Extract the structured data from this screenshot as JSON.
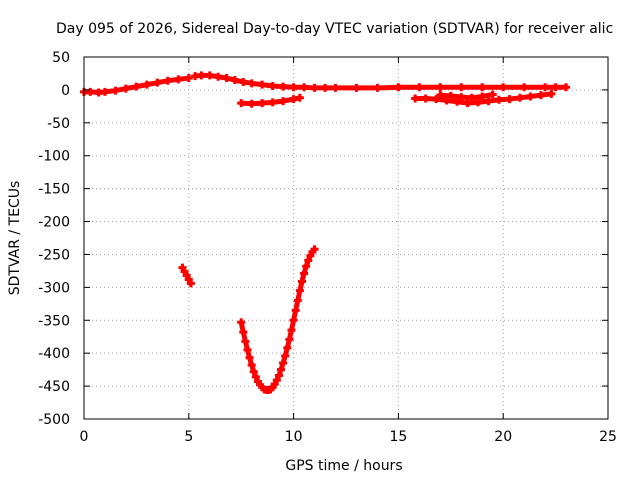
{
  "chart_data": {
    "type": "scatter",
    "title": "Day 095 of 2026, Sidereal Day-to-day VTEC variation (SDTVAR) for receiver alic",
    "xlabel": "GPS time / hours",
    "ylabel": "SDTVAR / TECUs",
    "xlim": [
      0,
      25
    ],
    "ylim": [
      -500,
      50
    ],
    "xticks": [
      0,
      5,
      10,
      15,
      20,
      25
    ],
    "yticks": [
      50,
      0,
      -50,
      -100,
      -150,
      -200,
      -250,
      -300,
      -350,
      -400,
      -450,
      -500
    ],
    "grid": true,
    "legend": "none",
    "marker": "+",
    "color": "#ff0000",
    "series": [
      {
        "x": [
          0.0,
          0.3,
          0.7,
          1.0,
          1.5,
          2.0,
          2.5,
          3.0,
          3.5,
          4.0,
          4.5,
          5.0
        ],
        "y": [
          -3,
          -3,
          -4,
          -3,
          -1,
          2,
          5,
          8,
          11,
          14,
          16,
          18
        ]
      },
      {
        "x": [
          5.3,
          5.6,
          6.0,
          6.4,
          6.8,
          7.2,
          7.6,
          8.0,
          8.5,
          9.0,
          9.5,
          10.0,
          10.5,
          11.0,
          11.5,
          12.0,
          13.0,
          14.0,
          15.0,
          16.0,
          17.0,
          18.0,
          19.0,
          20.0,
          21.0,
          22.0,
          22.5,
          23.0
        ],
        "y": [
          21,
          22,
          22,
          20,
          18,
          15,
          12,
          10,
          8,
          6,
          5,
          4,
          4,
          3,
          3,
          3,
          3,
          3,
          4,
          4,
          4,
          4,
          4,
          4,
          4,
          4,
          4,
          4
        ]
      },
      {
        "x": [
          7.5,
          8.0,
          8.5,
          9.0,
          9.5,
          10.0,
          10.3
        ],
        "y": [
          -20,
          -21,
          -20,
          -19,
          -17,
          -14,
          -12
        ]
      },
      {
        "x": [
          15.8,
          16.3,
          16.8,
          17.3,
          17.8,
          18.3,
          18.8,
          19.3,
          19.8,
          20.3,
          20.8,
          21.3,
          21.8,
          22.3
        ],
        "y": [
          -13,
          -13,
          -14,
          -16,
          -18,
          -20,
          -19,
          -17,
          -15,
          -14,
          -12,
          -10,
          -8,
          -6
        ]
      },
      {
        "x": [
          17.0,
          17.5,
          18.0,
          18.5,
          19.0,
          19.5
        ],
        "y": [
          -8,
          -9,
          -11,
          -12,
          -10,
          -7
        ]
      },
      {
        "x": [
          4.7,
          4.8,
          4.9,
          5.0,
          5.1
        ],
        "y": [
          -270,
          -276,
          -282,
          -288,
          -294
        ]
      },
      {
        "x": [
          7.5,
          7.6,
          7.7,
          7.8,
          7.9,
          8.0,
          8.1,
          8.2,
          8.3,
          8.4,
          8.5,
          8.6,
          8.7,
          8.8,
          8.9,
          9.0,
          9.1,
          9.2,
          9.3,
          9.4,
          9.5,
          9.6,
          9.7,
          9.8,
          9.9,
          10.0,
          10.1,
          10.2,
          10.3,
          10.4,
          10.5,
          10.6,
          10.7,
          10.8,
          10.9,
          11.0
        ],
        "y": [
          -353,
          -368,
          -382,
          -395,
          -407,
          -418,
          -428,
          -436,
          -443,
          -448,
          -452,
          -455,
          -456,
          -456,
          -455,
          -452,
          -447,
          -441,
          -434,
          -425,
          -415,
          -404,
          -392,
          -379,
          -365,
          -350,
          -335,
          -320,
          -305,
          -291,
          -279,
          -268,
          -259,
          -252,
          -246,
          -242
        ]
      }
    ]
  }
}
